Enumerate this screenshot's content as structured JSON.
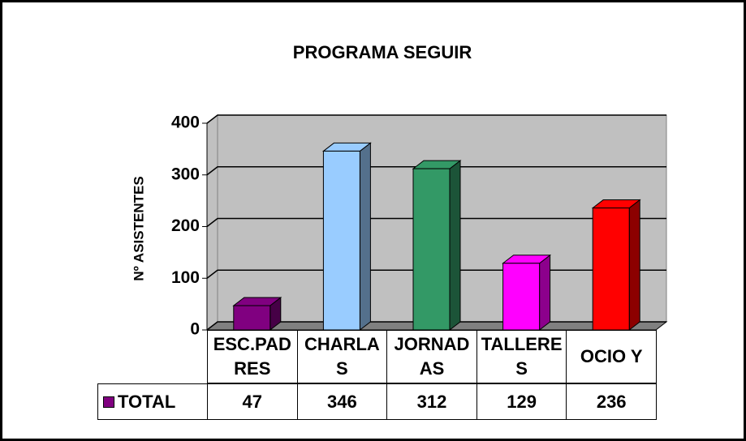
{
  "chart_data": {
    "type": "bar3d",
    "title": "PROGRAMA SEGUIR",
    "y_label": "Nº ASISTENTES",
    "categories": [
      "ESC.PADRES",
      "CHARLAS",
      "JORNADAS",
      "TALLERES",
      "OCIO Y"
    ],
    "series": [
      {
        "name": "TOTAL",
        "color": "#800080",
        "values": [
          47,
          346,
          312,
          129,
          236
        ]
      }
    ],
    "bar_colors": [
      "#800080",
      "#99ccff",
      "#339966",
      "#ff00ff",
      "#ff0000"
    ],
    "ylim": [
      0,
      400
    ],
    "yticks": [
      0,
      100,
      200,
      300,
      400
    ],
    "grid": true
  }
}
